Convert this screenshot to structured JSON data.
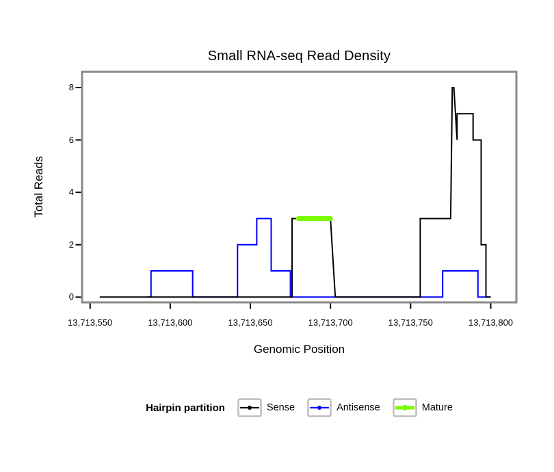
{
  "chart_data": {
    "type": "line",
    "subtype": "step-coverage",
    "title": "Small RNA-seq Read Density",
    "xlabel": "Genomic Position",
    "ylabel": "Total Reads",
    "xlim": [
      13713545,
      13713816
    ],
    "ylim": [
      -0.2,
      8.6
    ],
    "x_ticks": [
      13713550,
      13713600,
      13713650,
      13713700,
      13713750,
      13713800
    ],
    "x_tick_labels": [
      "13,713,550",
      "13,713,600",
      "13,713,650",
      "13,713,700",
      "13,713,750",
      "13,713,800"
    ],
    "y_ticks": [
      0,
      2,
      4,
      6,
      8
    ],
    "y_tick_labels": [
      "0",
      "2",
      "4",
      "6",
      "8"
    ],
    "panel_border_color": "#8A8A8A",
    "grid": false,
    "series": [
      {
        "name": "Antisense",
        "color": "#0000FF",
        "width": 2,
        "linecap": "butt",
        "points": [
          [
            13713585,
            0
          ],
          [
            13713588,
            0
          ],
          [
            13713588,
            1
          ],
          [
            13713614,
            1
          ],
          [
            13713614,
            0
          ],
          [
            13713642,
            0
          ],
          [
            13713642,
            2
          ],
          [
            13713654,
            2
          ],
          [
            13713654,
            3
          ],
          [
            13713663,
            3
          ],
          [
            13713663,
            1
          ],
          [
            13713675,
            1
          ],
          [
            13713675,
            0
          ],
          [
            13713770,
            0
          ],
          [
            13713770,
            1
          ],
          [
            13713792,
            1
          ],
          [
            13713792,
            0
          ],
          [
            13713800,
            0
          ]
        ]
      },
      {
        "name": "Sense",
        "color": "#000000",
        "width": 2,
        "linecap": "butt",
        "points": [
          [
            13713556,
            0
          ],
          [
            13713676,
            0
          ],
          [
            13713676,
            3
          ],
          [
            13713700,
            3
          ],
          [
            13713701,
            2
          ],
          [
            13713703,
            0
          ],
          [
            13713756,
            0
          ],
          [
            13713756,
            3
          ],
          [
            13713775,
            3
          ],
          [
            13713776,
            8
          ],
          [
            13713777,
            8
          ],
          [
            13713779,
            6
          ],
          [
            13713779,
            7
          ],
          [
            13713789,
            7
          ],
          [
            13713789,
            6
          ],
          [
            13713794,
            6
          ],
          [
            13713794,
            2
          ],
          [
            13713797,
            2
          ],
          [
            13713797,
            0
          ],
          [
            13713800,
            0
          ]
        ]
      },
      {
        "name": "Mature",
        "color": "#7CFC00",
        "width": 7,
        "linecap": "round",
        "points": [
          [
            13713680,
            3
          ],
          [
            13713700,
            3
          ]
        ]
      }
    ]
  },
  "legend": {
    "title": "Hairpin partition",
    "key_border_color": "#BEBEBE",
    "items": [
      {
        "label": "Sense",
        "color": "#000000"
      },
      {
        "label": "Antisense",
        "color": "#0000FF"
      },
      {
        "label": "Mature",
        "color": "#7CFC00"
      }
    ]
  }
}
